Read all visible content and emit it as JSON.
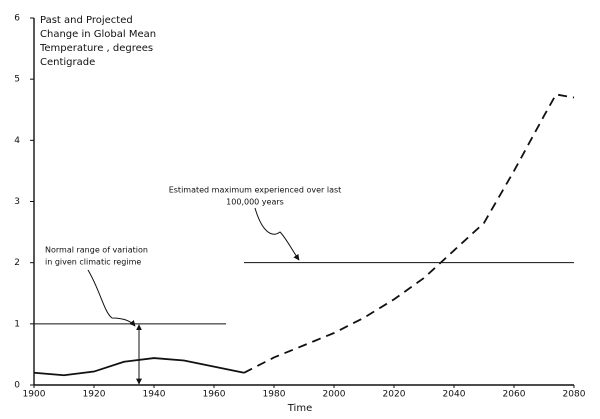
{
  "chart_data": {
    "type": "line",
    "title": [
      "Past and Projected",
      "Change in Global Mean",
      "Temperature , degrees",
      "Centigrade"
    ],
    "x_label": "Time",
    "xlim": [
      1900,
      2080
    ],
    "xticks": [
      1900,
      1920,
      1940,
      1960,
      1980,
      2000,
      2020,
      2040,
      2060,
      2080
    ],
    "ylim": [
      0,
      6
    ],
    "yticks": [
      0,
      1,
      2,
      3,
      4,
      5,
      6
    ],
    "grid": false,
    "series": [
      {
        "color": "#111111",
        "dashed": false,
        "x": [
          1900,
          1910,
          1920,
          1930,
          1940,
          1950,
          1960,
          1970
        ],
        "values": [
          0.2,
          0.16,
          0.22,
          0.38,
          0.44,
          0.4,
          0.3,
          0.2
        ]
      },
      {
        "color": "#111111",
        "dashed": true,
        "x": [
          1970,
          1980,
          1990,
          2000,
          2010,
          2020,
          2030,
          2040,
          2050,
          2060,
          2070,
          2074,
          2080
        ],
        "values": [
          0.2,
          0.45,
          0.65,
          0.85,
          1.1,
          1.4,
          1.75,
          2.2,
          2.65,
          3.5,
          4.4,
          4.75,
          4.7
        ]
      }
    ],
    "reference_lines": [
      {
        "value": 1,
        "x": [
          1900,
          1964
        ],
        "annotation": [
          "Normal range of variation",
          "in given climatic regime"
        ]
      },
      {
        "value": 2,
        "x": [
          1970,
          2080
        ],
        "annotation": [
          "Estimated maximum experienced over last",
          "100,000 years"
        ]
      }
    ]
  }
}
